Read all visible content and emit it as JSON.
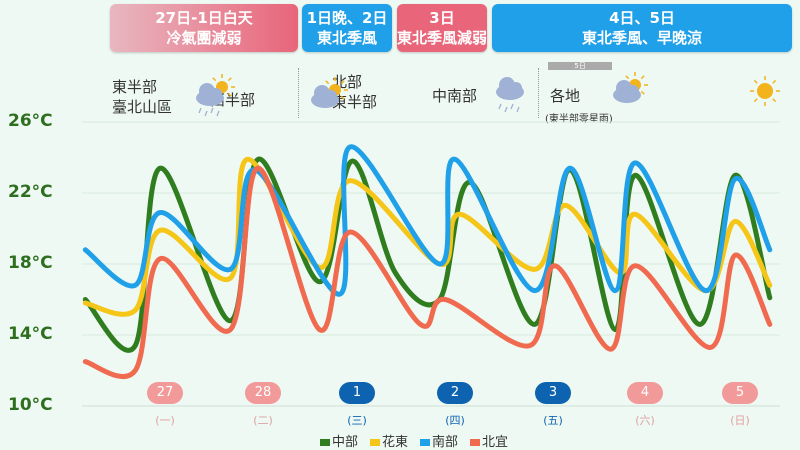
{
  "header": [
    {
      "line1": "27日-1日白天",
      "line2": "冷氣團減弱",
      "color": "#e8657a"
    },
    {
      "line1": "1日晚、2日",
      "line2": "東北季風",
      "color": "#1fa0e8"
    },
    {
      "line1": "3日",
      "line2": "東北季風減弱",
      "color": "#e8657a"
    },
    {
      "line1": "4日、5日",
      "line2": "東北季風、早晚涼",
      "color": "#1fa0e8"
    }
  ],
  "weather": {
    "east_line1": "東半部",
    "east_line2": "臺北山區",
    "east_icon": "sun-cloud-rain-icon",
    "west": "西半部",
    "west_icon": "sun-cloud-icon",
    "north_line1": "北部",
    "north_line2": "東半部",
    "north_icon": "cloud-rain-icon",
    "central_south": "中南部",
    "central_south_icon": "sun-cloud-icon",
    "day5_tag": "5日",
    "all": "各地",
    "all_icon": "sun-icon",
    "note": "(東半部零星雨)"
  },
  "days": [
    {
      "date": "27",
      "weekday": "(一)",
      "type": "warm"
    },
    {
      "date": "28",
      "weekday": "(二)",
      "type": "warm"
    },
    {
      "date": "1",
      "weekday": "(三)",
      "type": "cold"
    },
    {
      "date": "2",
      "weekday": "(四)",
      "type": "cold"
    },
    {
      "date": "3",
      "weekday": "(五)",
      "type": "cold"
    },
    {
      "date": "4",
      "weekday": "(六)",
      "type": "warm"
    },
    {
      "date": "5",
      "weekday": "(日)",
      "type": "warm"
    }
  ],
  "chart_data": {
    "type": "line",
    "ylim": [
      10,
      26
    ],
    "yticks": [
      "26°C",
      "22°C",
      "18°C",
      "14°C",
      "10°C"
    ],
    "ytick_values": [
      26,
      22,
      18,
      14,
      10
    ],
    "x_unit": "day index (0 = 27日)",
    "grid": true,
    "legend_position": "bottom",
    "series": [
      {
        "name": "中部",
        "color": "#2f7d1e",
        "points": [
          [
            -0.83,
            16.0
          ],
          [
            -0.31,
            13.4
          ],
          [
            -0.05,
            23.4
          ],
          [
            0.68,
            14.8
          ],
          [
            0.97,
            23.9
          ],
          [
            1.61,
            17.0
          ],
          [
            1.95,
            23.8
          ],
          [
            2.4,
            17.5
          ],
          [
            2.86,
            16.0
          ],
          [
            3.18,
            22.6
          ],
          [
            3.85,
            14.6
          ],
          [
            4.22,
            23.3
          ],
          [
            4.69,
            14.3
          ],
          [
            4.9,
            23.0
          ],
          [
            5.57,
            14.6
          ],
          [
            5.94,
            23.0
          ],
          [
            6.3,
            16.1
          ]
        ]
      },
      {
        "name": "花東",
        "color": "#f5c518",
        "points": [
          [
            -0.83,
            15.8
          ],
          [
            -0.31,
            15.4
          ],
          [
            -0.05,
            19.9
          ],
          [
            0.68,
            17.2
          ],
          [
            0.86,
            23.9
          ],
          [
            1.61,
            17.8
          ],
          [
            1.93,
            22.7
          ],
          [
            2.86,
            18.0
          ],
          [
            3.07,
            20.8
          ],
          [
            3.85,
            17.7
          ],
          [
            4.17,
            21.3
          ],
          [
            4.74,
            17.5
          ],
          [
            4.9,
            20.8
          ],
          [
            5.63,
            16.5
          ],
          [
            5.94,
            20.4
          ],
          [
            6.3,
            16.8
          ]
        ]
      },
      {
        "name": "南部",
        "color": "#1fa0e8",
        "points": [
          [
            -0.83,
            18.8
          ],
          [
            -0.31,
            16.8
          ],
          [
            -0.05,
            20.9
          ],
          [
            0.68,
            17.7
          ],
          [
            0.94,
            23.3
          ],
          [
            1.82,
            16.3
          ],
          [
            1.93,
            24.6
          ],
          [
            2.86,
            18.0
          ],
          [
            3.02,
            23.9
          ],
          [
            3.85,
            16.5
          ],
          [
            4.22,
            23.4
          ],
          [
            4.69,
            16.5
          ],
          [
            4.9,
            23.7
          ],
          [
            5.63,
            16.5
          ],
          [
            5.94,
            22.8
          ],
          [
            6.3,
            18.8
          ]
        ]
      },
      {
        "name": "北宜",
        "color": "#f06a50",
        "points": [
          [
            -0.83,
            12.5
          ],
          [
            -0.31,
            12.0
          ],
          [
            -0.05,
            18.3
          ],
          [
            0.68,
            14.3
          ],
          [
            0.97,
            23.4
          ],
          [
            1.61,
            14.3
          ],
          [
            1.93,
            19.8
          ],
          [
            2.66,
            14.6
          ],
          [
            2.92,
            16.0
          ],
          [
            3.8,
            13.4
          ],
          [
            4.06,
            17.9
          ],
          [
            4.64,
            13.2
          ],
          [
            4.9,
            17.9
          ],
          [
            5.68,
            13.3
          ],
          [
            5.94,
            18.5
          ],
          [
            6.3,
            14.6
          ]
        ]
      }
    ]
  }
}
